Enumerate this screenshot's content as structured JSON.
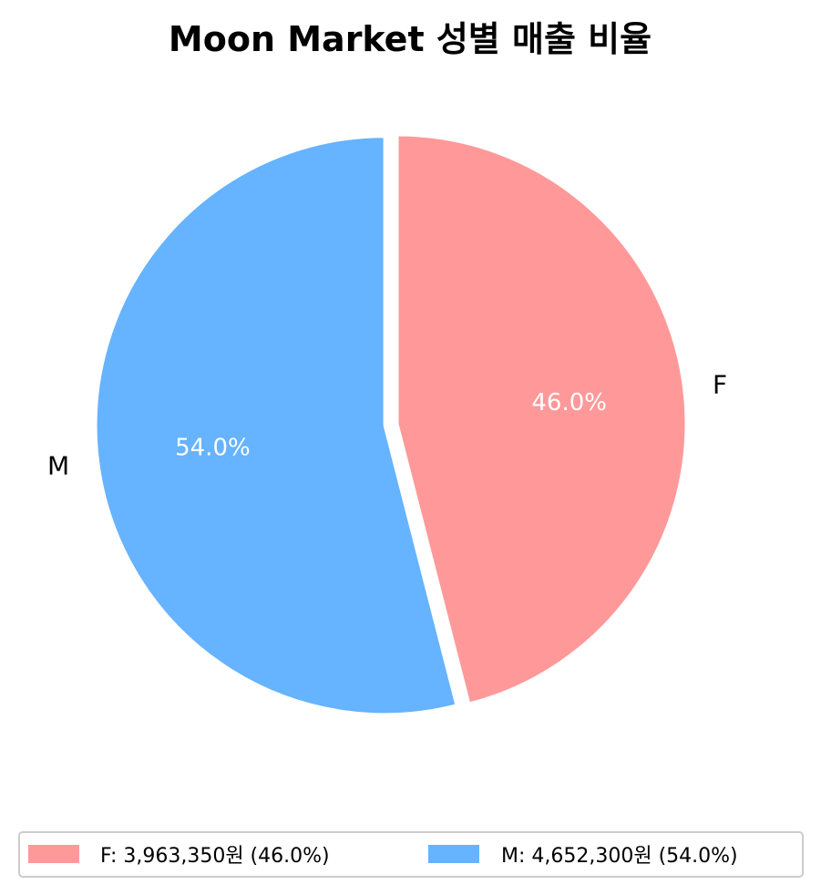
{
  "chart_data": {
    "type": "pie",
    "title": "Moon Market 성별 매출 비율",
    "slices": [
      {
        "label": "F",
        "value": 3963350,
        "percent_label": "46.0%",
        "legend": "F: 3,963,350원 (46.0%)",
        "color": "#ff9999",
        "exploded": false
      },
      {
        "label": "M",
        "value": 4652300,
        "percent_label": "54.0%",
        "legend": "M: 4,652,300원 (54.0%)",
        "color": "#66b3ff",
        "exploded": true
      }
    ],
    "start_angle_deg": 90,
    "direction": "clockwise",
    "legend_position": "bottom",
    "legend_columns": 2
  }
}
